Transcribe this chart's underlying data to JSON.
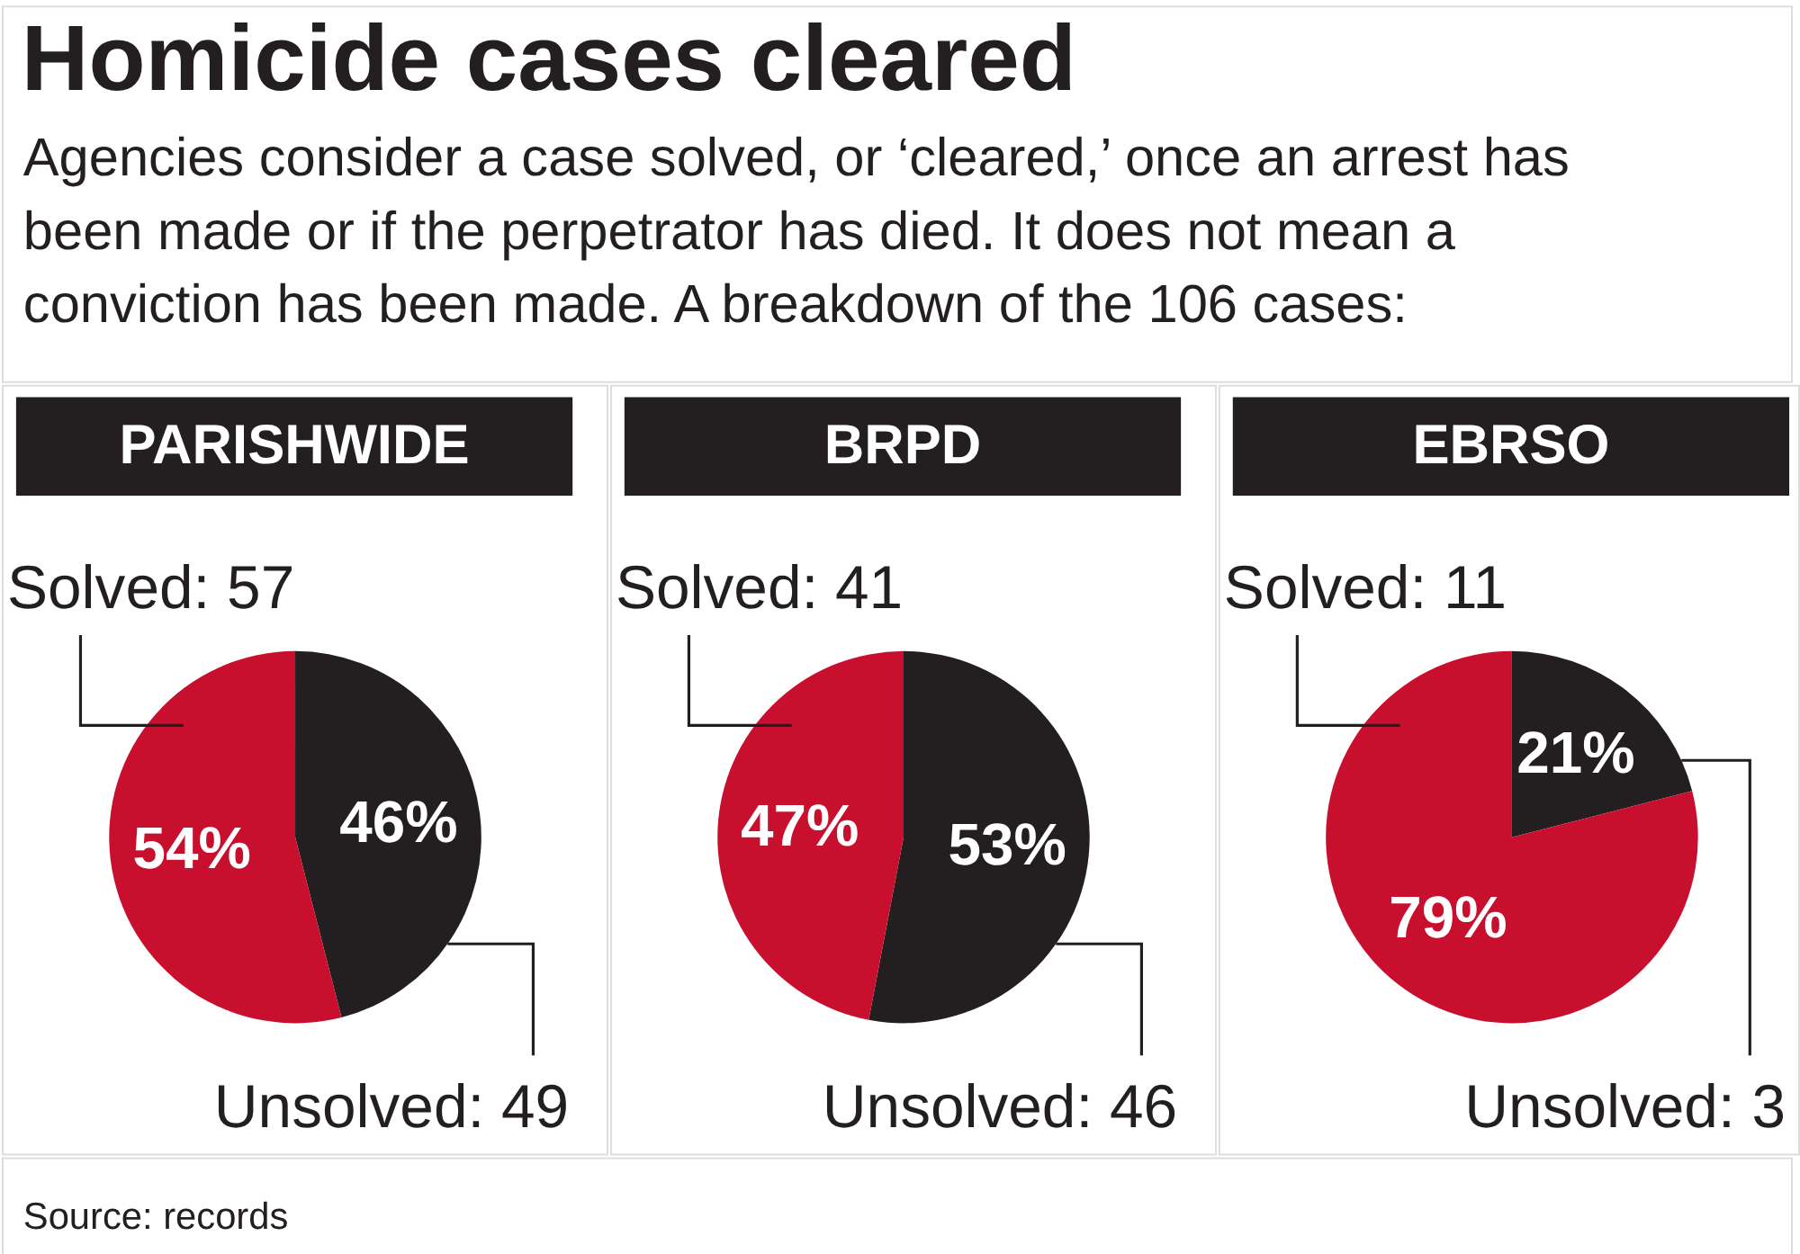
{
  "chart_data": [
    {
      "type": "other",
      "title": "Homicide cases cleared",
      "subtitle": "Agencies consider a case solved, or ‘cleared,’ once an arrest has been made or if the perpetrator has died. It does not mean a conviction has been made. A breakdown of the 106 cases:",
      "annotations": [
        "Source: records"
      ]
    },
    {
      "type": "pie",
      "title": "PARISHWIDE",
      "categories": [
        "Unsolved: 49",
        "Solved: 57"
      ],
      "values": [
        46,
        54
      ],
      "colors": [
        "#231f20",
        "#c8102e"
      ],
      "value_labels": [
        "46%",
        "54%"
      ]
    },
    {
      "type": "pie",
      "title": "BRPD",
      "categories": [
        "Unsolved: 46",
        "Solved: 41"
      ],
      "values": [
        53,
        47
      ],
      "colors": [
        "#231f20",
        "#c8102e"
      ],
      "value_labels": [
        "53%",
        "47%"
      ]
    },
    {
      "type": "pie",
      "title": "EBRSO",
      "categories": [
        "Unsolved: 3",
        "Solved: 11"
      ],
      "values": [
        21,
        79
      ],
      "colors": [
        "#231f20",
        "#c8102e"
      ],
      "value_labels": [
        "21%",
        "79%"
      ]
    }
  ]
}
